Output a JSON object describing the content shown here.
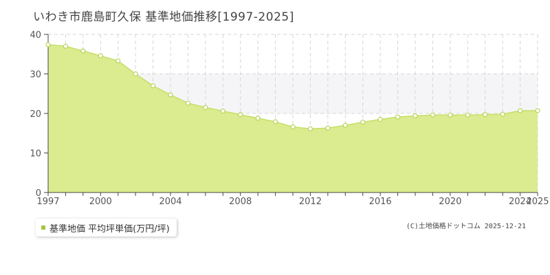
{
  "title": "いわき市鹿島町久保  基準地価推移[1997-2025]",
  "legend": {
    "label": "基準地価 平均坪単価(万円/坪)"
  },
  "credit": "(C)土地価格ドットコム 2025-12-21",
  "colors": {
    "fill": "#dbeb8f",
    "line": "#c5df66",
    "point_stroke": "#b6d45a",
    "grid": "#d6d6d6"
  },
  "chart_data": {
    "type": "area",
    "title": "いわき市鹿島町久保  基準地価推移[1997-2025]",
    "xlabel": "",
    "ylabel": "",
    "x": [
      1997,
      1998,
      1999,
      2000,
      2001,
      2002,
      2003,
      2004,
      2005,
      2006,
      2007,
      2008,
      2009,
      2010,
      2011,
      2012,
      2013,
      2014,
      2015,
      2016,
      2017,
      2018,
      2019,
      2020,
      2021,
      2022,
      2023,
      2024,
      2025
    ],
    "series": [
      {
        "name": "基準地価 平均坪単価(万円/坪)",
        "values": [
          37.4,
          37.0,
          35.8,
          34.6,
          33.3,
          30.0,
          27.0,
          24.7,
          22.6,
          21.5,
          20.6,
          19.7,
          18.8,
          17.9,
          16.6,
          16.1,
          16.3,
          17.0,
          17.8,
          18.5,
          19.1,
          19.4,
          19.6,
          19.6,
          19.6,
          19.7,
          19.8,
          20.7,
          20.7
        ]
      }
    ],
    "xticks": [
      "1997",
      "2000",
      "2004",
      "2008",
      "2012",
      "2016",
      "2020",
      "2024",
      "2025"
    ],
    "yticks": [
      "0",
      "10",
      "20",
      "30",
      "40"
    ],
    "xlim": [
      1997,
      2025
    ],
    "ylim": [
      0,
      40
    ],
    "grid": true,
    "legend_position": "bottom-left"
  }
}
